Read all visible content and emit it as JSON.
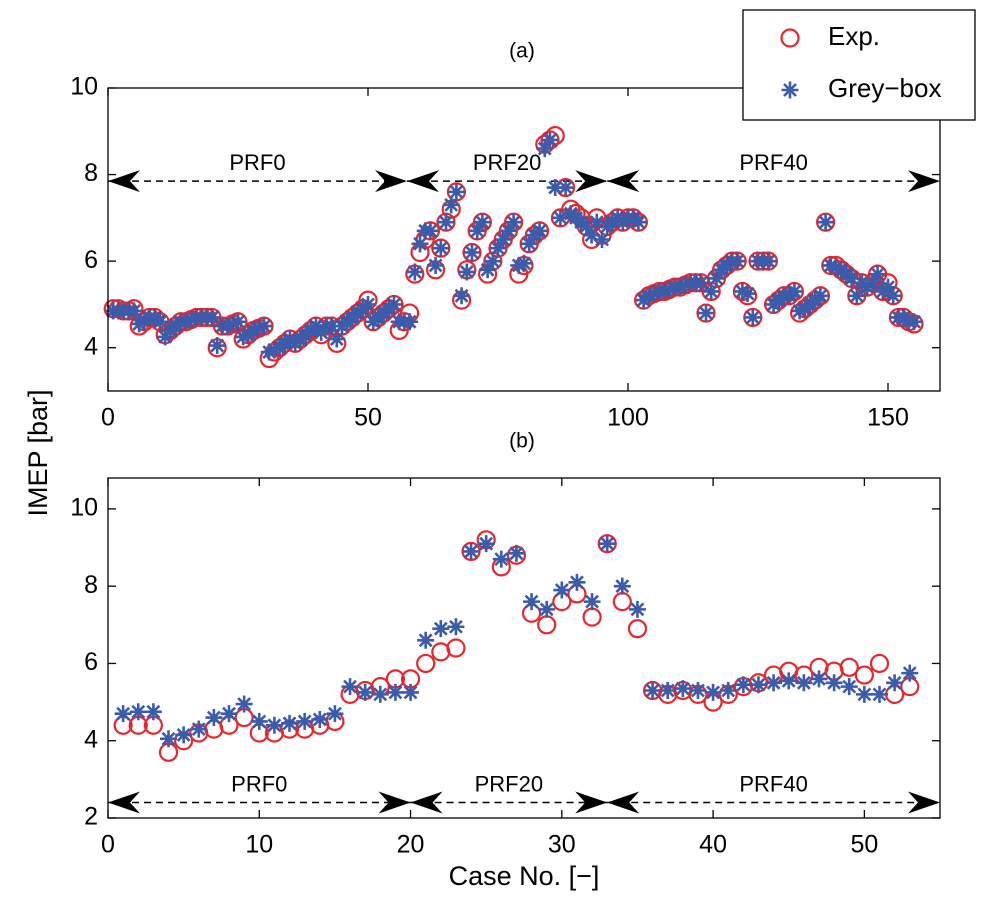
{
  "chart_data": [
    {
      "type": "scatter",
      "title": "(a)",
      "ylabel": "IMEP [bar]",
      "xlim": [
        0,
        160
      ],
      "ylim": [
        3,
        10
      ],
      "xticks": [
        0,
        50,
        100,
        150
      ],
      "yticks": [
        4,
        6,
        8,
        10
      ],
      "legend": "outside-upper-right",
      "x": [
        1,
        2,
        3,
        4,
        5,
        6,
        7,
        8,
        9,
        10,
        11,
        12,
        13,
        14,
        15,
        16,
        17,
        18,
        19,
        20,
        21,
        22,
        23,
        24,
        25,
        26,
        27,
        28,
        29,
        30,
        31,
        32,
        33,
        34,
        35,
        36,
        37,
        38,
        39,
        40,
        41,
        42,
        43,
        44,
        45,
        46,
        47,
        48,
        49,
        50,
        51,
        52,
        53,
        54,
        55,
        56,
        57,
        58,
        59,
        60,
        61,
        62,
        63,
        64,
        65,
        66,
        67,
        68,
        69,
        70,
        71,
        72,
        73,
        74,
        75,
        76,
        77,
        78,
        79,
        80,
        81,
        82,
        83,
        84,
        85,
        86,
        87,
        88,
        89,
        90,
        91,
        92,
        93,
        94,
        95,
        96,
        97,
        98,
        99,
        100,
        101,
        102,
        103,
        104,
        105,
        106,
        107,
        108,
        109,
        110,
        111,
        112,
        113,
        114,
        115,
        116,
        117,
        118,
        119,
        120,
        121,
        122,
        123,
        124,
        125,
        126,
        127,
        128,
        129,
        130,
        131,
        132,
        133,
        134,
        135,
        136,
        137,
        138,
        139,
        140,
        141,
        142,
        143,
        144,
        145,
        146,
        147,
        148,
        149,
        150,
        151,
        152,
        153,
        154,
        155
      ],
      "series": [
        {
          "name": "Exp.",
          "color": "#e8262b",
          "marker": "circle",
          "values": [
            4.9,
            4.9,
            4.85,
            4.85,
            4.9,
            4.5,
            4.6,
            4.7,
            4.7,
            4.6,
            4.3,
            4.4,
            4.5,
            4.6,
            4.6,
            4.65,
            4.7,
            4.7,
            4.7,
            4.7,
            4.0,
            4.5,
            4.5,
            4.55,
            4.6,
            4.2,
            4.3,
            4.4,
            4.45,
            4.5,
            3.75,
            3.9,
            4.0,
            4.1,
            4.2,
            4.1,
            4.2,
            4.3,
            4.4,
            4.5,
            4.3,
            4.5,
            4.5,
            4.1,
            4.5,
            4.6,
            4.7,
            4.8,
            4.9,
            5.1,
            4.6,
            4.7,
            4.8,
            4.9,
            5.0,
            4.4,
            4.6,
            4.8,
            5.7,
            6.2,
            6.5,
            6.7,
            5.8,
            6.3,
            6.9,
            7.2,
            7.6,
            5.1,
            5.8,
            6.2,
            6.7,
            6.9,
            5.7,
            6.0,
            6.3,
            6.5,
            6.7,
            6.9,
            5.7,
            5.9,
            6.4,
            6.6,
            6.7,
            8.7,
            8.8,
            8.9,
            7.0,
            7.7,
            7.2,
            7.1,
            7.0,
            6.8,
            6.5,
            7.0,
            6.6,
            6.8,
            6.9,
            7.0,
            6.9,
            7.0,
            7.0,
            6.9,
            5.1,
            5.2,
            5.25,
            5.3,
            5.3,
            5.35,
            5.4,
            5.4,
            5.45,
            5.5,
            5.5,
            5.5,
            4.8,
            5.3,
            5.6,
            5.8,
            5.9,
            6.0,
            6.0,
            5.3,
            5.2,
            4.7,
            6.0,
            6.0,
            6.0,
            5.0,
            5.1,
            5.2,
            5.2,
            5.3,
            4.8,
            4.9,
            5.0,
            5.1,
            5.2,
            6.9,
            5.9,
            5.9,
            5.8,
            5.7,
            5.6,
            5.2,
            5.5,
            5.4,
            5.5,
            5.7,
            5.3,
            5.5,
            5.2,
            4.7,
            4.7,
            4.6,
            4.55
          ]
        },
        {
          "name": "Grey−box",
          "color": "#3b5bab",
          "marker": "asterisk",
          "values": [
            4.85,
            4.85,
            4.85,
            4.85,
            4.85,
            4.55,
            4.65,
            4.7,
            4.7,
            4.6,
            4.25,
            4.4,
            4.5,
            4.6,
            4.6,
            4.65,
            4.7,
            4.7,
            4.7,
            4.7,
            4.05,
            4.5,
            4.5,
            4.55,
            4.6,
            4.25,
            4.3,
            4.4,
            4.45,
            4.5,
            3.9,
            3.95,
            4.0,
            4.1,
            4.2,
            4.1,
            4.2,
            4.3,
            4.4,
            4.5,
            4.35,
            4.5,
            4.5,
            4.2,
            4.5,
            4.6,
            4.7,
            4.8,
            4.9,
            5.0,
            4.6,
            4.7,
            4.8,
            4.9,
            5.0,
            4.6,
            4.6,
            4.6,
            5.75,
            6.4,
            6.7,
            6.7,
            5.9,
            6.3,
            6.9,
            7.3,
            7.6,
            5.2,
            5.75,
            6.2,
            6.7,
            6.9,
            5.8,
            6.0,
            6.3,
            6.5,
            6.7,
            6.9,
            5.9,
            5.95,
            6.4,
            6.6,
            6.7,
            8.6,
            8.8,
            7.7,
            7.0,
            7.7,
            7.1,
            7.0,
            6.9,
            6.8,
            6.6,
            6.9,
            6.5,
            6.8,
            6.9,
            7.0,
            6.9,
            7.0,
            7.0,
            6.9,
            5.1,
            5.2,
            5.25,
            5.3,
            5.3,
            5.35,
            5.4,
            5.4,
            5.45,
            5.5,
            5.5,
            5.5,
            4.8,
            5.3,
            5.6,
            5.8,
            5.9,
            6.0,
            6.0,
            5.3,
            5.25,
            4.7,
            6.0,
            6.0,
            6.0,
            5.0,
            5.1,
            5.2,
            5.2,
            5.3,
            4.85,
            4.9,
            5.0,
            5.1,
            5.2,
            6.9,
            5.9,
            5.85,
            5.8,
            5.7,
            5.6,
            5.2,
            5.5,
            5.4,
            5.5,
            5.7,
            5.3,
            5.4,
            5.2,
            4.7,
            4.7,
            4.6,
            4.6
          ]
        }
      ],
      "annotations": [
        {
          "text": "PRF0",
          "x": [
            0,
            57.5
          ],
          "y": 7.85
        },
        {
          "text": "PRF20",
          "x": [
            57.5,
            96
          ],
          "y": 7.85
        },
        {
          "text": "PRF40",
          "x": [
            96,
            160
          ],
          "y": 7.85
        }
      ]
    },
    {
      "type": "scatter",
      "title": "(b)",
      "xlabel": "Case No. [−]",
      "xlim": [
        0,
        55
      ],
      "ylim": [
        2,
        10.8
      ],
      "xticks": [
        0,
        10,
        20,
        30,
        40,
        50
      ],
      "yticks": [
        2,
        4,
        6,
        8,
        10
      ],
      "x": [
        1,
        2,
        3,
        4,
        5,
        6,
        7,
        8,
        9,
        10,
        11,
        12,
        13,
        14,
        15,
        16,
        17,
        18,
        19,
        20,
        21,
        22,
        23,
        24,
        25,
        26,
        27,
        28,
        29,
        30,
        31,
        32,
        33,
        34,
        35,
        36,
        37,
        38,
        39,
        40,
        41,
        42,
        43,
        44,
        45,
        46,
        47,
        48,
        49,
        50,
        51,
        52,
        53
      ],
      "series": [
        {
          "name": "Exp.",
          "color": "#e8262b",
          "marker": "circle",
          "values": [
            4.4,
            4.4,
            4.4,
            3.7,
            4.0,
            4.2,
            4.3,
            4.4,
            4.6,
            4.2,
            4.2,
            4.3,
            4.3,
            4.4,
            4.5,
            5.2,
            5.3,
            5.4,
            5.6,
            5.6,
            6.0,
            6.3,
            6.4,
            8.9,
            9.2,
            8.5,
            8.8,
            7.3,
            7.0,
            7.6,
            7.8,
            7.2,
            9.1,
            7.6,
            6.9,
            5.3,
            5.2,
            5.3,
            5.2,
            5.0,
            5.2,
            5.4,
            5.5,
            5.7,
            5.8,
            5.7,
            5.9,
            5.8,
            5.9,
            5.7,
            6.0,
            5.2,
            5.4
          ]
        },
        {
          "name": "Grey−box",
          "color": "#3b5bab",
          "marker": "asterisk",
          "values": [
            4.7,
            4.75,
            4.75,
            4.05,
            4.15,
            4.3,
            4.6,
            4.7,
            4.95,
            4.5,
            4.4,
            4.45,
            4.5,
            4.55,
            4.7,
            5.4,
            5.25,
            5.2,
            5.25,
            5.25,
            6.6,
            6.9,
            6.95,
            8.9,
            9.1,
            8.7,
            8.85,
            7.6,
            7.4,
            7.9,
            8.1,
            7.6,
            9.1,
            8.0,
            7.4,
            5.3,
            5.3,
            5.35,
            5.3,
            5.25,
            5.3,
            5.45,
            5.45,
            5.5,
            5.55,
            5.5,
            5.6,
            5.5,
            5.4,
            5.2,
            5.2,
            5.5,
            5.75
          ]
        }
      ],
      "annotations": [
        {
          "text": "PRF0",
          "x": [
            0,
            20
          ],
          "y": 2.4
        },
        {
          "text": "PRF20",
          "x": [
            20,
            33
          ],
          "y": 2.4
        },
        {
          "text": "PRF40",
          "x": [
            33,
            55
          ],
          "y": 2.4
        }
      ]
    }
  ]
}
